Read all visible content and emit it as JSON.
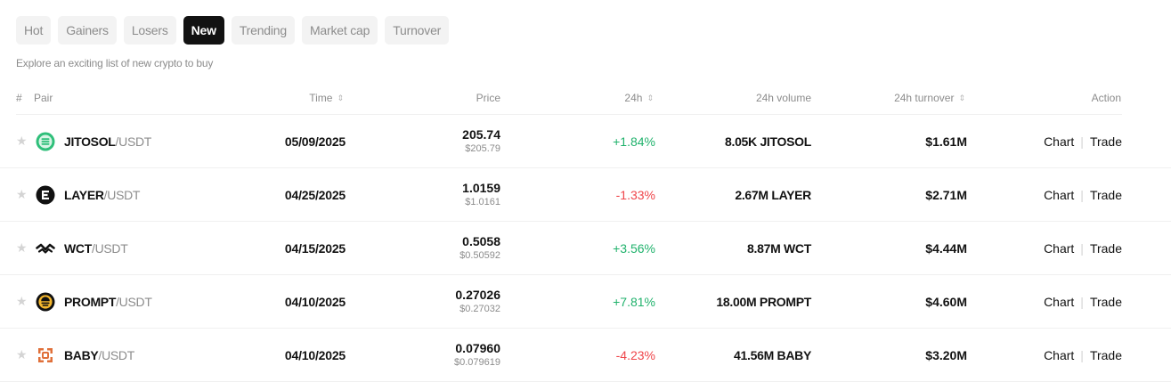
{
  "tabs": [
    {
      "label": "Hot",
      "active": false
    },
    {
      "label": "Gainers",
      "active": false
    },
    {
      "label": "Losers",
      "active": false
    },
    {
      "label": "New",
      "active": true
    },
    {
      "label": "Trending",
      "active": false
    },
    {
      "label": "Market cap",
      "active": false
    },
    {
      "label": "Turnover",
      "active": false
    }
  ],
  "subtitle": "Explore an exciting list of new crypto to buy",
  "columns": {
    "index": "#",
    "pair": "Pair",
    "time": "Time",
    "price": "Price",
    "change": "24h",
    "volume": "24h volume",
    "turnover": "24h turnover",
    "action": "Action"
  },
  "sort_glyph": "⇕",
  "colors": {
    "up": "#20b26c",
    "down": "#ef454a",
    "active_tab": "#121212"
  },
  "rows": [
    {
      "base": "JITOSOL",
      "quote": "/USDT",
      "icon": "jitosol-icon",
      "time": "05/09/2025",
      "price": "205.74",
      "price_usd": "$205.79",
      "change": "+1.84%",
      "direction": "up",
      "volume": "8.05K JITOSOL",
      "turnover": "$1.61M",
      "chart": "Chart",
      "trade": "Trade"
    },
    {
      "base": "LAYER",
      "quote": "/USDT",
      "icon": "layer-icon",
      "time": "04/25/2025",
      "price": "1.0159",
      "price_usd": "$1.0161",
      "change": "-1.33%",
      "direction": "down",
      "volume": "2.67M LAYER",
      "turnover": "$2.71M",
      "chart": "Chart",
      "trade": "Trade"
    },
    {
      "base": "WCT",
      "quote": "/USDT",
      "icon": "wct-icon",
      "time": "04/15/2025",
      "price": "0.5058",
      "price_usd": "$0.50592",
      "change": "+3.56%",
      "direction": "up",
      "volume": "8.87M WCT",
      "turnover": "$4.44M",
      "chart": "Chart",
      "trade": "Trade"
    },
    {
      "base": "PROMPT",
      "quote": "/USDT",
      "icon": "prompt-icon",
      "time": "04/10/2025",
      "price": "0.27026",
      "price_usd": "$0.27032",
      "change": "+7.81%",
      "direction": "up",
      "volume": "18.00M PROMPT",
      "turnover": "$4.60M",
      "chart": "Chart",
      "trade": "Trade"
    },
    {
      "base": "BABY",
      "quote": "/USDT",
      "icon": "baby-icon",
      "time": "04/10/2025",
      "price": "0.07960",
      "price_usd": "$0.079619",
      "change": "-4.23%",
      "direction": "down",
      "volume": "41.56M BABY",
      "turnover": "$3.20M",
      "chart": "Chart",
      "trade": "Trade"
    }
  ]
}
